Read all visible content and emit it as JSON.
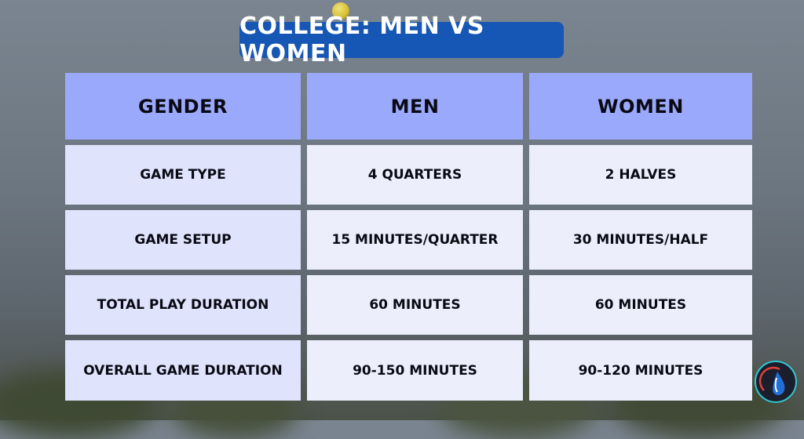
{
  "title": "College: Men vs Women",
  "table": {
    "headers": [
      "Gender",
      "Men",
      "Women"
    ],
    "rows": [
      [
        "Game Type",
        "4 Quarters",
        "2 Halves"
      ],
      [
        "Game Setup",
        "15 Minutes/Quarter",
        "30 Minutes/Half"
      ],
      [
        "Total Play Duration",
        "60 Minutes",
        "60 Minutes"
      ],
      [
        "Overall Game Duration",
        "90-150 Minutes",
        "90-120 Minutes"
      ]
    ]
  },
  "colors": {
    "title_bg": "#1656b5",
    "header_bg": "#9ba9fc",
    "first_col_bg": "#dfe3fb",
    "cell_bg": "#eceefc"
  },
  "icons": [
    "lacrosse-ball-icon",
    "brand-logo-icon"
  ]
}
